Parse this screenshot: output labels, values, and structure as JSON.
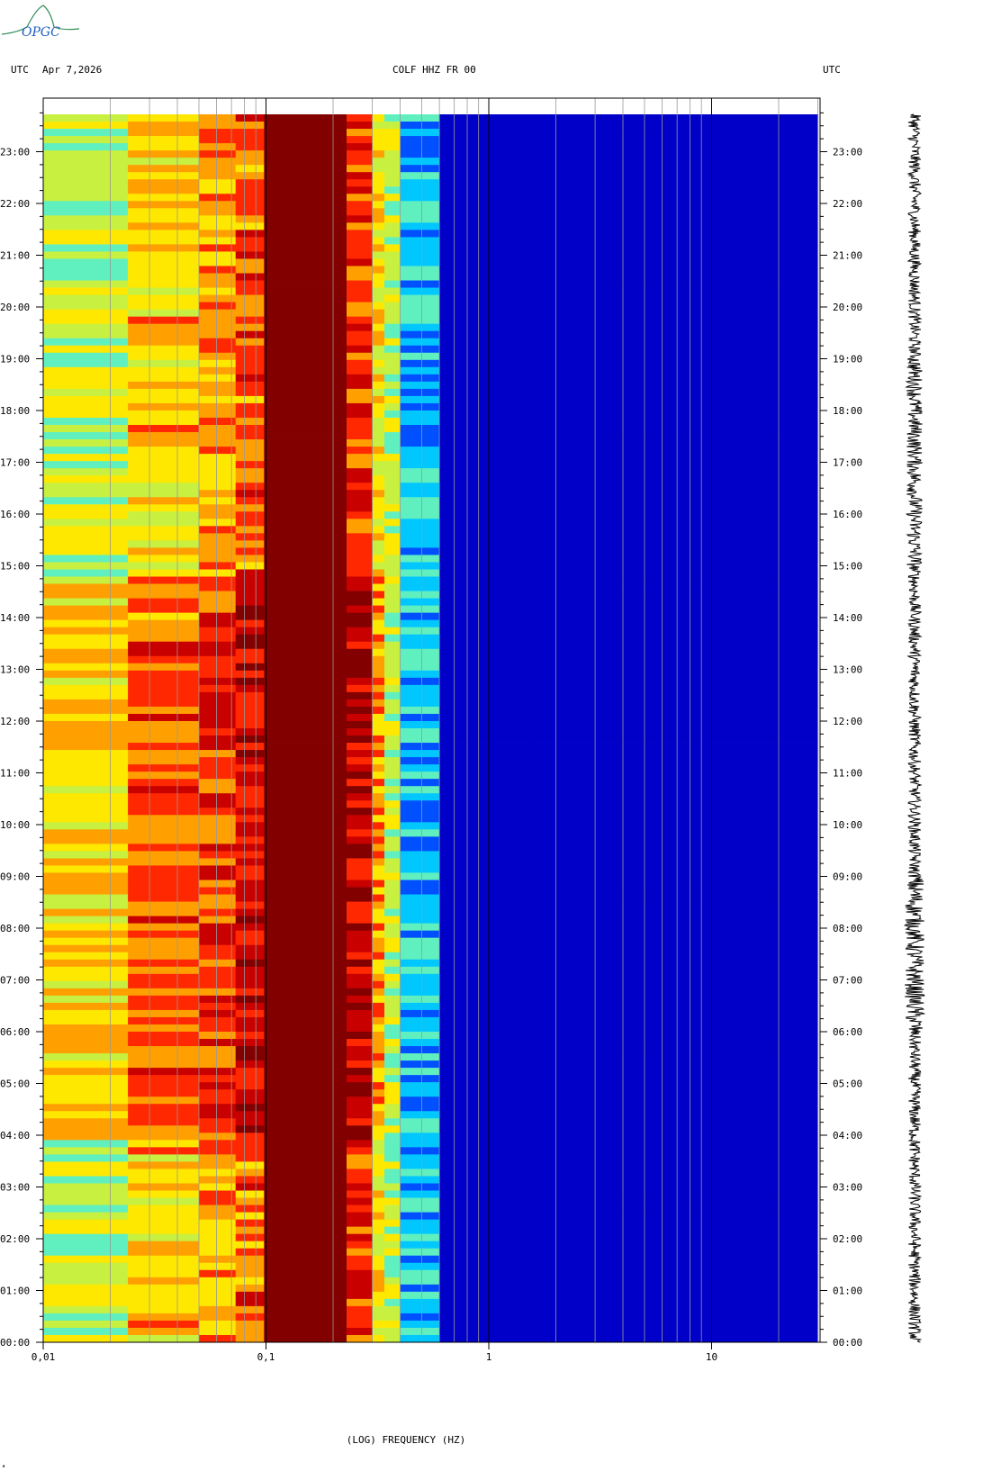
{
  "header": {
    "left_tz": "UTC",
    "date": "Apr 7,2026",
    "station": "COLF HHZ FR 00",
    "right_tz": "UTC"
  },
  "logo": {
    "text": "OPGC",
    "icon": "opgc-volcano-logo"
  },
  "chart_data": {
    "type": "heatmap",
    "title": "COLF HHZ FR 00",
    "xlabel": "(LOG) FREQUENCY (HZ)",
    "ylabel": "",
    "x_scale": "log",
    "x_range_hz": [
      0.01,
      30
    ],
    "x_tick_labels": [
      {
        "value": 0.01,
        "label": "0,01"
      },
      {
        "value": 0.1,
        "label": "0,1"
      },
      {
        "value": 1,
        "label": "1"
      },
      {
        "value": 10,
        "label": "10"
      }
    ],
    "y_range_hours": [
      0,
      23.75
    ],
    "y_tick_labels": [
      "00:00",
      "01:00",
      "02:00",
      "03:00",
      "04:00",
      "05:00",
      "06:00",
      "07:00",
      "08:00",
      "09:00",
      "10:00",
      "11:00",
      "12:00",
      "13:00",
      "14:00",
      "15:00",
      "16:00",
      "17:00",
      "18:00",
      "19:00",
      "20:00",
      "21:00",
      "22:00",
      "23:00"
    ],
    "grid": "vertical lines at 1-9 x decade multiples",
    "colormap": [
      "#00008c",
      "#0000c8",
      "#0050ff",
      "#00c8ff",
      "#60f0c0",
      "#c8f040",
      "#ffe800",
      "#ffa000",
      "#ff2800",
      "#c80000",
      "#820000"
    ],
    "band_levels": [
      {
        "from_hz": 0.01,
        "to_hz": 0.024,
        "level": 6.3
      },
      {
        "from_hz": 0.024,
        "to_hz": 0.05,
        "level": 7.6
      },
      {
        "from_hz": 0.05,
        "to_hz": 0.073,
        "level": 8.0
      },
      {
        "from_hz": 0.073,
        "to_hz": 0.098,
        "level": 8.8
      },
      {
        "from_hz": 0.098,
        "to_hz": 0.23,
        "level": 10
      },
      {
        "from_hz": 0.23,
        "to_hz": 0.3,
        "level": 9.2
      },
      {
        "from_hz": 0.3,
        "to_hz": 0.34,
        "level": 7
      },
      {
        "from_hz": 0.34,
        "to_hz": 0.4,
        "level": 5
      },
      {
        "from_hz": 0.4,
        "to_hz": 0.6,
        "level": 3
      },
      {
        "from_hz": 0.6,
        "to_hz": 1.5,
        "level": 1
      },
      {
        "from_hz": 1.5,
        "to_hz": 30,
        "level": 0.8
      }
    ],
    "waveform": "vertical seismic trace, 24 h"
  }
}
